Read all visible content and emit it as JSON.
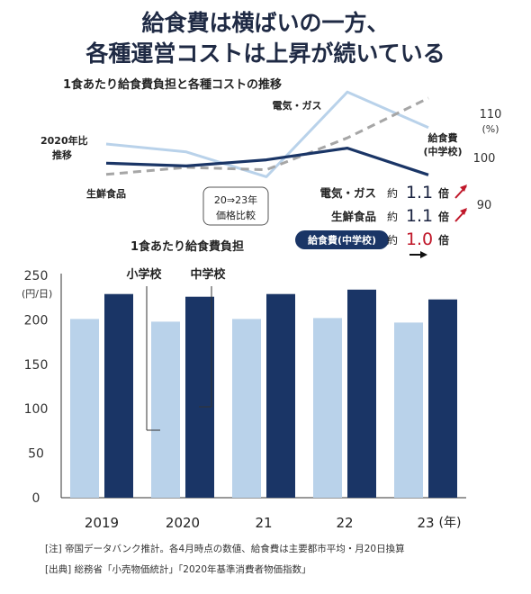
{
  "title_line1": "給食費は横ばいの一方、",
  "title_line2": "各種運営コストは上昇が続いている",
  "colors": {
    "navy": "#1a3566",
    "light_blue": "#b9d2ea",
    "dash_gray": "#a6a6a6",
    "title_text": "#1f2a44",
    "red": "#c0182a",
    "axis": "#333333"
  },
  "chart_data": [
    {
      "type": "line",
      "title": "1食あたり給食費負担と各種コストの推移",
      "ylabel_left": "2020年比\n推移",
      "yticks_right": [
        "110",
        "(%)",
        "100",
        "90"
      ],
      "ylim": [
        86,
        116
      ],
      "x": [
        "2019",
        "2020",
        "2021",
        "2022",
        "2023"
      ],
      "series": [
        {
          "name": "電気・ガス",
          "values": [
            102.7,
            101,
            95.7,
            113.8,
            106.2
          ],
          "color": "light_blue",
          "style": "solid"
        },
        {
          "name": "生鮮食品",
          "values": [
            96.2,
            97.7,
            97.2,
            104,
            112.5
          ],
          "color": "dash_gray",
          "style": "dashed"
        },
        {
          "name": "給食費\n(中学校)",
          "values": [
            98.6,
            98,
            99.3,
            101.8,
            96.1
          ],
          "color": "navy",
          "style": "solid"
        }
      ],
      "annotation_box": "20⇒23年\n価格比較",
      "comparison": [
        {
          "label": "電気・ガス",
          "prefix": "約",
          "value": "1.1",
          "suffix": "倍",
          "trend": "up"
        },
        {
          "label": "生鮮食品",
          "prefix": "約",
          "value": "1.1",
          "suffix": "倍",
          "trend": "up"
        },
        {
          "label": "給食費(中学校)",
          "prefix": "約",
          "value": "1.0",
          "suffix": "倍",
          "trend": "flat"
        }
      ]
    },
    {
      "type": "bar",
      "title": "1食あたり給食費負担",
      "ylabel": "(円/日)",
      "categories": [
        "2019",
        "2020",
        "21",
        "22",
        "23"
      ],
      "x_unit": "(年)",
      "ylim": [
        0,
        250
      ],
      "yticks": [
        0,
        50,
        100,
        150,
        200,
        250
      ],
      "series": [
        {
          "name": "小学校",
          "values": [
            201,
            198,
            201,
            202,
            197
          ],
          "color": "light_blue"
        },
        {
          "name": "中学校",
          "values": [
            229,
            226,
            229,
            234,
            223
          ],
          "color": "navy"
        }
      ]
    }
  ],
  "notes": [
    "[注] 帝国データバンク推計。各4月時点の数値、給食費は主要都市平均・月20日換算",
    "[出典] 総務省「小売物価統計」「2020年基準消費者物価指数」"
  ]
}
